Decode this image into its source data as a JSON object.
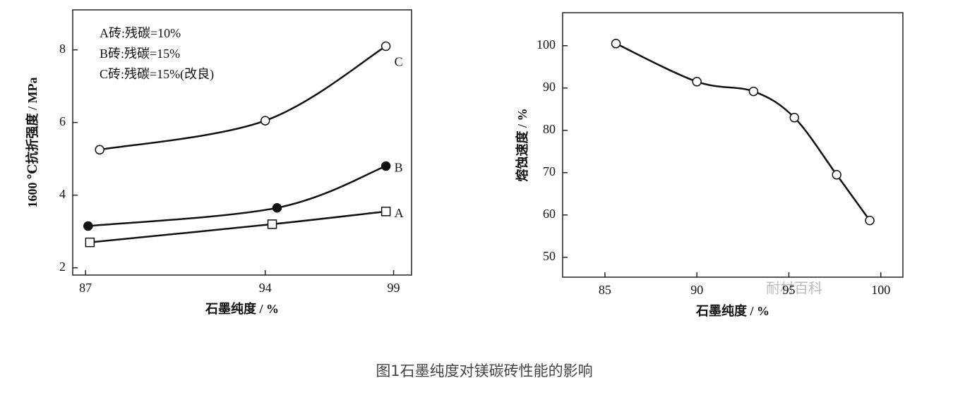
{
  "chart_data": [
    {
      "type": "line",
      "x_label": "石墨纯度 / %",
      "y_label": "1600 ℃抗折强度 / MPa",
      "annotations": [
        "A砖:残碳=10%",
        "B砖:残碳=15%",
        "C砖:残碳=15%(改良)"
      ],
      "xlim": [
        86.5,
        99.7
      ],
      "xticks": [
        87,
        94,
        99
      ],
      "ylim": [
        1.8,
        9.1
      ],
      "yticks": [
        2,
        4,
        6,
        8
      ],
      "series": [
        {
          "name": "C",
          "color": "#111111",
          "marker": "circle",
          "filled": false,
          "x": [
            87.55,
            94,
            98.7
          ],
          "values": [
            5.25,
            6.05,
            8.1
          ]
        },
        {
          "name": "B",
          "color": "#111111",
          "marker": "circle",
          "filled": true,
          "x": [
            87.1,
            94.46,
            98.7
          ],
          "values": [
            3.15,
            3.65,
            4.8
          ]
        },
        {
          "name": "A",
          "color": "#111111",
          "marker": "square",
          "filled": false,
          "x": [
            87.17,
            94.27,
            98.7
          ],
          "values": [
            2.7,
            3.2,
            3.55
          ]
        }
      ]
    },
    {
      "type": "line",
      "x_label": "石墨纯度 / %",
      "y_label": "熔蚀速度 / %",
      "xlim": [
        82.7,
        101.2
      ],
      "xticks": [
        85,
        90,
        95,
        100
      ],
      "ylim": [
        45.3,
        107.8
      ],
      "yticks": [
        50,
        60,
        70,
        80,
        90,
        100
      ],
      "series": [
        {
          "color": "#111111",
          "marker": "circle",
          "filled": false,
          "x": [
            85.6,
            90,
            93.08,
            95.3,
            97.6,
            99.4
          ],
          "values": [
            100.5,
            91.5,
            89.2,
            83,
            69.5,
            58.7
          ]
        }
      ]
    }
  ],
  "watermark": "耐材百科",
  "caption": "图1石墨纯度对镁碳砖性能的影响"
}
